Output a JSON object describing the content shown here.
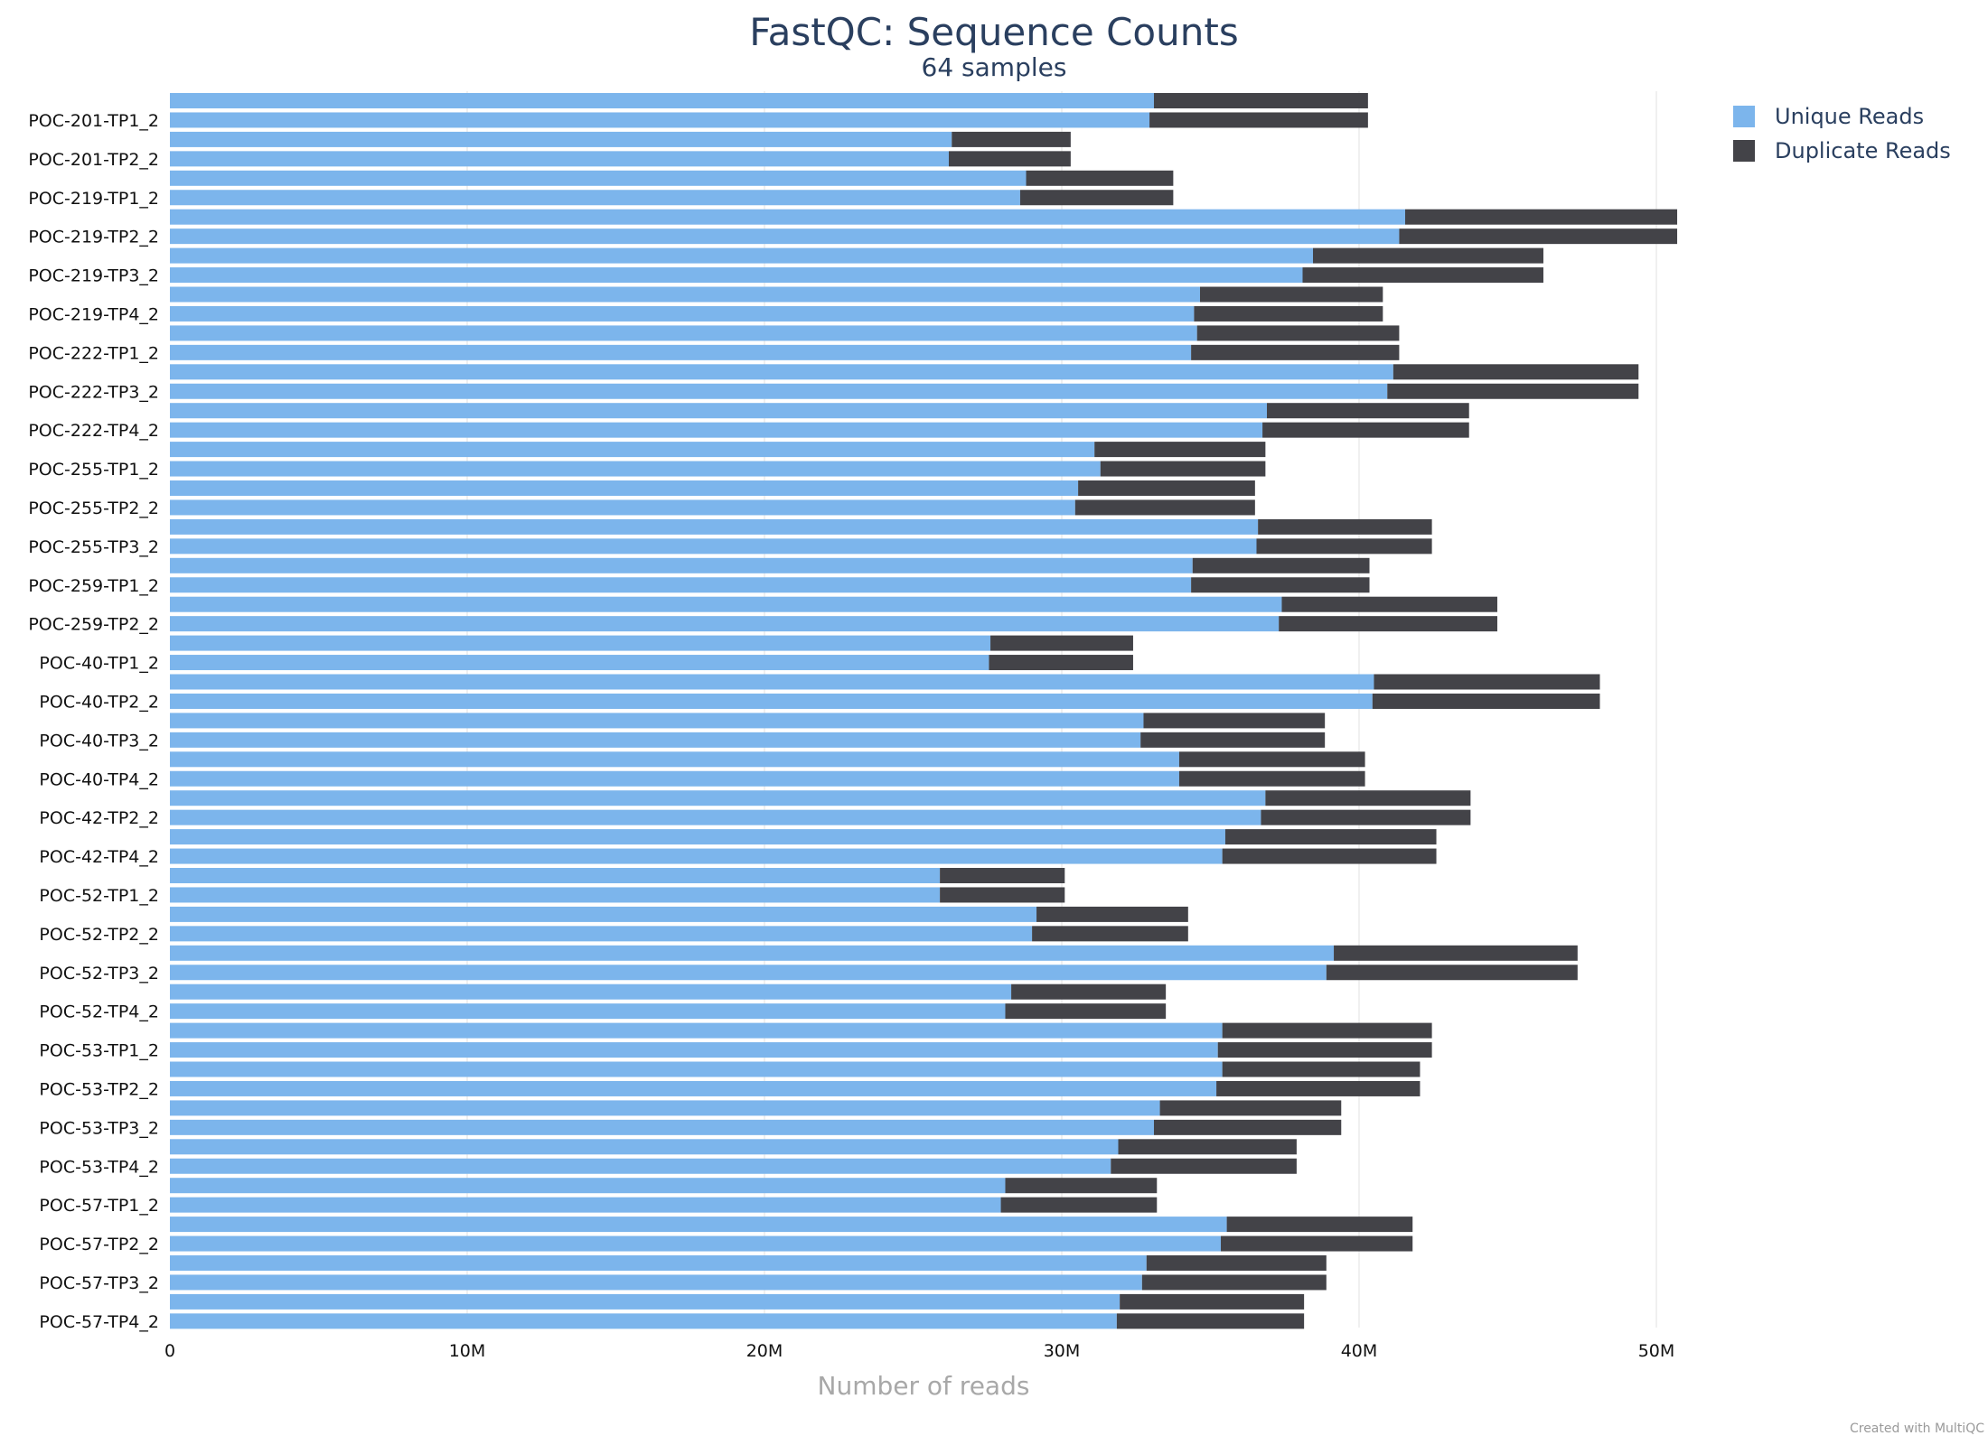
{
  "chart_data": {
    "type": "bar",
    "orientation": "horizontal",
    "stacked": true,
    "title": "FastQC: Sequence Counts",
    "subtitle": "64 samples",
    "xlabel": "Number of reads",
    "xlim": [
      0,
      57000000
    ],
    "xticks": [
      0,
      10000000,
      20000000,
      30000000,
      40000000,
      50000000
    ],
    "xtick_labels": [
      "0",
      "10M",
      "20M",
      "30M",
      "40M",
      "50M"
    ],
    "grid": true,
    "legend_position": "top-right",
    "colors": {
      "unique": "#7cb5ec",
      "duplicate": "#434348"
    },
    "series": [
      {
        "name": "Unique Reads",
        "values": [
          33100000,
          32950000,
          26300000,
          26200000,
          28800000,
          28600000,
          41550000,
          41350000,
          38450000,
          38100000,
          34650000,
          34450000,
          34550000,
          34350000,
          41150000,
          40950000,
          36900000,
          36750000,
          31100000,
          31300000,
          30550000,
          30450000,
          36600000,
          36550000,
          34400000,
          34350000,
          37400000,
          37300000,
          27600000,
          27550000,
          40500000,
          40450000,
          32750000,
          32650000,
          33950000,
          33950000,
          36850000,
          36700000,
          35500000,
          35400000,
          25900000,
          25900000,
          29150000,
          29000000,
          39150000,
          38900000,
          28300000,
          28100000,
          35400000,
          35250000,
          35400000,
          35200000,
          33300000,
          33100000,
          31900000,
          31650000,
          28100000,
          27950000,
          35550000,
          35350000,
          32850000,
          32700000,
          31950000,
          31850000
        ]
      },
      {
        "name": "Duplicate Reads",
        "values": [
          7200000,
          7350000,
          4000000,
          4100000,
          4950000,
          5150000,
          9150000,
          9350000,
          7750000,
          8100000,
          6150000,
          6350000,
          6800000,
          7000000,
          8250000,
          8450000,
          6800000,
          6950000,
          5750000,
          5550000,
          5950000,
          6050000,
          5850000,
          5900000,
          5950000,
          6000000,
          7250000,
          7350000,
          4800000,
          4850000,
          7600000,
          7650000,
          6100000,
          6200000,
          6250000,
          6250000,
          6900000,
          7050000,
          7100000,
          7200000,
          4200000,
          4200000,
          5100000,
          5250000,
          8200000,
          8450000,
          5200000,
          5400000,
          7050000,
          7200000,
          6650000,
          6850000,
          6100000,
          6300000,
          6000000,
          6250000,
          5100000,
          5250000,
          6250000,
          6450000,
          6050000,
          6200000,
          6200000,
          6300000
        ]
      }
    ],
    "labeled_categories": [
      "POC-201-TP1_2",
      "POC-201-TP2_2",
      "POC-219-TP1_2",
      "POC-219-TP2_2",
      "POC-219-TP3_2",
      "POC-219-TP4_2",
      "POC-222-TP1_2",
      "POC-222-TP3_2",
      "POC-222-TP4_2",
      "POC-255-TP1_2",
      "POC-255-TP2_2",
      "POC-255-TP3_2",
      "POC-259-TP1_2",
      "POC-259-TP2_2",
      "POC-40-TP1_2",
      "POC-40-TP2_2",
      "POC-40-TP3_2",
      "POC-40-TP4_2",
      "POC-42-TP2_2",
      "POC-42-TP4_2",
      "POC-52-TP1_2",
      "POC-52-TP2_2",
      "POC-52-TP3_2",
      "POC-52-TP4_2",
      "POC-53-TP1_2",
      "POC-53-TP2_2",
      "POC-53-TP3_2",
      "POC-53-TP4_2",
      "POC-57-TP1_2",
      "POC-57-TP2_2",
      "POC-57-TP3_2",
      "POC-57-TP4_2"
    ]
  },
  "footer": {
    "credit": "Created with MultiQC"
  }
}
